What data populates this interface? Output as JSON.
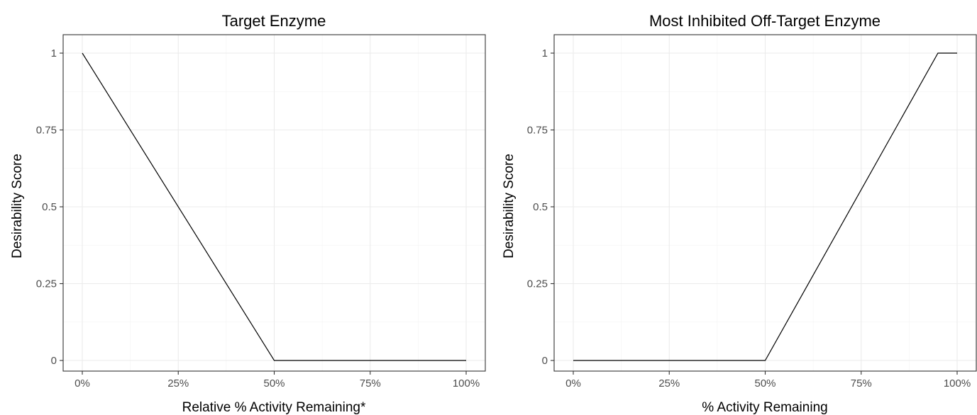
{
  "chart_data": [
    {
      "type": "line",
      "title": "Target Enzyme",
      "xlabel": "Relative % Activity Remaining*",
      "ylabel": "Desirability Score",
      "xlim": [
        0,
        100
      ],
      "ylim": [
        0,
        1
      ],
      "x_ticks": [
        0,
        25,
        50,
        75,
        100
      ],
      "x_tick_labels": [
        "0%",
        "25%",
        "50%",
        "75%",
        "100%"
      ],
      "y_ticks": [
        0,
        0.25,
        0.5,
        0.75,
        1
      ],
      "y_tick_labels": [
        "0",
        "0.25",
        "0.5",
        "0.75",
        "1"
      ],
      "grid": true,
      "series": [
        {
          "x": [
            0,
            50,
            100
          ],
          "y": [
            1,
            0,
            0
          ]
        }
      ]
    },
    {
      "type": "line",
      "title": "Most Inhibited Off-Target Enzyme",
      "xlabel": "% Activity Remaining",
      "ylabel": "Desirability Score",
      "xlim": [
        0,
        100
      ],
      "ylim": [
        0,
        1
      ],
      "x_ticks": [
        0,
        25,
        50,
        75,
        100
      ],
      "x_tick_labels": [
        "0%",
        "25%",
        "50%",
        "75%",
        "100%"
      ],
      "y_ticks": [
        0,
        0.25,
        0.5,
        0.75,
        1
      ],
      "y_tick_labels": [
        "0",
        "0.25",
        "0.5",
        "0.75",
        "1"
      ],
      "grid": true,
      "series": [
        {
          "x": [
            0,
            50,
            95,
            100
          ],
          "y": [
            0,
            0,
            1,
            1
          ]
        }
      ]
    }
  ]
}
